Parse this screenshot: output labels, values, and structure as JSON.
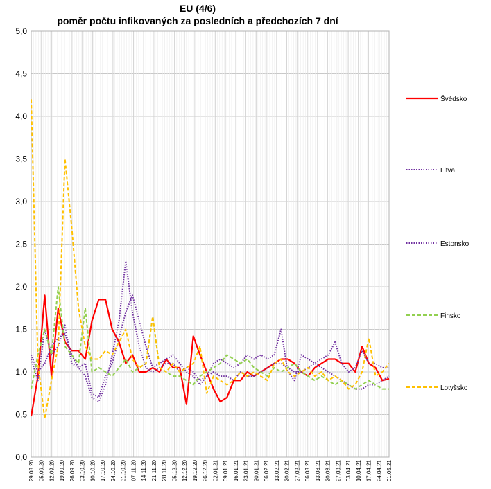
{
  "chart_data": {
    "type": "line",
    "title": "EU (4/6)",
    "subtitle": "poměr počtu infikovaných za posledních a předchozích 7 dní",
    "xlabel": "",
    "ylabel": "",
    "ylim": [
      0,
      5
    ],
    "yticks": [
      "0,0",
      "0,5",
      "1,0",
      "1,5",
      "2,0",
      "2,5",
      "3,0",
      "3,5",
      "4,0",
      "4,5",
      "5,0"
    ],
    "xtick_labels": [
      "29.08.20",
      "05.09.20",
      "12.09.20",
      "19.09.20",
      "26.09.20",
      "03.10.20",
      "10.10.20",
      "17.10.20",
      "24.10.20",
      "31.10.20",
      "07.11.20",
      "14.11.20",
      "21.11.20",
      "28.11.20",
      "05.12.20",
      "12.12.20",
      "19.12.20",
      "26.12.20",
      "02.01.21",
      "09.01.21",
      "16.01.21",
      "23.01.21",
      "30.01.21",
      "06.02.21",
      "13.02.21",
      "20.02.21",
      "27.02.21",
      "06.03.21",
      "13.03.21",
      "20.03.21",
      "27.03.21",
      "03.04.21",
      "10.04.21",
      "17.04.21",
      "24.04.21",
      "01.05.21"
    ],
    "grid": true,
    "legend_position": "right",
    "series": [
      {
        "name": "Švédsko",
        "color": "#ff0000",
        "style": "solid",
        "values": [
          0.48,
          0.95,
          1.9,
          0.95,
          1.75,
          1.35,
          1.25,
          1.25,
          1.15,
          1.6,
          1.85,
          1.85,
          1.5,
          1.35,
          1.1,
          1.2,
          1.0,
          1.0,
          1.05,
          1.0,
          1.15,
          1.05,
          1.05,
          0.62,
          1.42,
          1.2,
          1.0,
          0.8,
          0.65,
          0.7,
          0.9,
          0.9,
          1.0,
          0.95,
          1.0,
          1.05,
          1.1,
          1.15,
          1.15,
          1.1,
          1.0,
          0.95,
          1.05,
          1.1,
          1.15,
          1.15,
          1.1,
          1.1,
          1.0,
          1.3,
          1.1,
          1.05,
          0.9,
          0.92
        ]
      },
      {
        "name": "Litva",
        "color": "#7030a0",
        "style": "dotted",
        "values": [
          1.2,
          1.0,
          1.1,
          1.3,
          1.4,
          1.45,
          1.2,
          1.05,
          0.95,
          0.7,
          0.65,
          0.85,
          1.2,
          1.6,
          2.3,
          1.7,
          1.3,
          1.05,
          1.0,
          1.05,
          1.1,
          1.1,
          1.0,
          1.05,
          1.0,
          0.9,
          0.95,
          1.0,
          0.95,
          0.95,
          0.9,
          1.0,
          0.95,
          0.95,
          1.0,
          1.05,
          1.1,
          1.1,
          1.05,
          1.0,
          1.0,
          1.05,
          1.1,
          1.05,
          1.0,
          0.95,
          0.9,
          0.85,
          0.8,
          0.8,
          0.85,
          0.85,
          0.9,
          0.95
        ]
      },
      {
        "name": "Estonsko",
        "color": "#7030a0",
        "style": "dotted",
        "values": [
          1.15,
          0.9,
          1.5,
          1.2,
          1.3,
          1.55,
          1.1,
          1.05,
          1.1,
          0.75,
          0.7,
          0.95,
          1.1,
          1.4,
          1.7,
          1.9,
          1.6,
          1.3,
          1.05,
          1.1,
          1.15,
          1.2,
          1.1,
          1.0,
          0.95,
          0.85,
          0.95,
          1.1,
          1.15,
          1.1,
          1.05,
          1.1,
          1.2,
          1.15,
          1.2,
          1.15,
          1.2,
          1.5,
          1.0,
          0.9,
          1.2,
          1.15,
          1.1,
          1.15,
          1.2,
          1.35,
          1.1,
          1.0,
          1.05,
          1.25,
          1.1,
          1.1,
          1.05,
          1.05
        ]
      },
      {
        "name": "Finsko",
        "color": "#92d050",
        "style": "dashed",
        "values": [
          0.8,
          1.2,
          1.5,
          1.2,
          2.0,
          1.3,
          1.2,
          1.1,
          1.75,
          1.0,
          1.05,
          1.0,
          0.95,
          1.05,
          1.15,
          1.0,
          1.05,
          1.1,
          1.65,
          1.05,
          1.0,
          0.95,
          0.95,
          0.9,
          0.85,
          0.95,
          1.0,
          1.05,
          1.1,
          1.2,
          1.15,
          1.1,
          1.15,
          1.05,
          1.0,
          0.95,
          1.05,
          1.0,
          1.05,
          1.1,
          1.0,
          0.95,
          0.9,
          0.95,
          0.9,
          0.85,
          0.9,
          0.85,
          0.8,
          0.85,
          0.9,
          0.85,
          0.8,
          0.8
        ]
      },
      {
        "name": "Lotyšsko",
        "color": "#ffc000",
        "style": "dashed",
        "values": [
          4.2,
          1.1,
          0.45,
          0.9,
          1.3,
          3.5,
          2.7,
          1.75,
          1.3,
          1.15,
          1.15,
          1.25,
          1.2,
          1.35,
          1.5,
          1.15,
          1.05,
          1.1,
          1.65,
          1.05,
          1.0,
          1.1,
          1.0,
          1.05,
          1.1,
          1.3,
          0.75,
          0.95,
          0.9,
          0.85,
          0.9,
          1.0,
          0.95,
          1.0,
          0.95,
          0.9,
          1.1,
          1.15,
          1.0,
          0.95,
          1.0,
          1.05,
          0.95,
          1.0,
          0.9,
          0.95,
          0.9,
          0.8,
          0.85,
          1.0,
          1.4,
          0.95,
          1.0,
          1.1
        ]
      }
    ]
  }
}
